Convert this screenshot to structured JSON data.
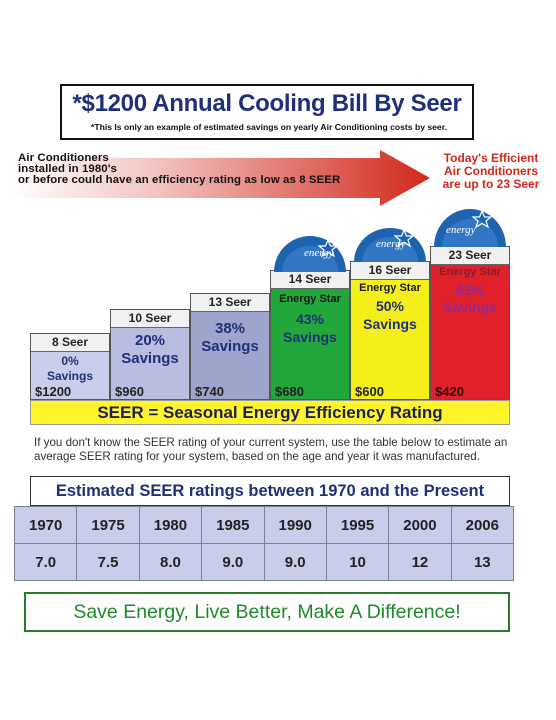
{
  "title": {
    "main": "*$1200 Annual Cooling Bill By Seer",
    "sub": "*This Is only an example of estimated savings on yearly Air Conditioning costs by seer."
  },
  "arrow": {
    "lines": [
      "Air Conditioners",
      "installed in 1980's",
      "or before could have an efficiency rating as low as 8 SEER"
    ]
  },
  "today": {
    "lines": [
      "Today's Efficient",
      "Air Conditioners",
      "are up to 23 Seer"
    ]
  },
  "energy_star_logo_text": "energy",
  "bars": [
    {
      "seer": "8 Seer",
      "star": "",
      "pct": "0%",
      "savings": "Savings",
      "cost": "$1200",
      "color": "#c9cdea",
      "text_color": "#1f2f7a"
    },
    {
      "seer": "10 Seer",
      "star": "",
      "pct": "20%",
      "savings": "Savings",
      "cost": "$960",
      "color": "#b9bde0",
      "text_color": "#1f2f7a"
    },
    {
      "seer": "13 Seer",
      "star": "",
      "pct": "38%",
      "savings": "Savings",
      "cost": "$740",
      "color": "#9ea5cc",
      "text_color": "#1f2f7a"
    },
    {
      "seer": "14 Seer",
      "star": "Energy Star",
      "pct": "43%",
      "savings": "Savings",
      "cost": "$680",
      "color": "#22a83a",
      "text_color": "#1f2f7a"
    },
    {
      "seer": "16 Seer",
      "star": "Energy Star",
      "pct": "50%",
      "savings": "Savings",
      "cost": "$600",
      "color": "#f4ee1a",
      "text_color": "#1f2f7a"
    },
    {
      "seer": "23 Seer",
      "star": "Energy Star",
      "pct": "65%",
      "savings": "Savings",
      "cost": "$420",
      "color": "#e0202a",
      "text_color": "#1f2f7a"
    }
  ],
  "seer_banner": "SEER  =  Seasonal Energy Efficiency Rating",
  "info_text": "If you don't know the SEER rating of your current system, use the table below to estimate an average SEER rating for your system, based on the age and year it was manufactured.",
  "table": {
    "title": "Estimated SEER ratings between 1970 and the Present",
    "years": [
      "1970",
      "1975",
      "1980",
      "1985",
      "1990",
      "1995",
      "2000",
      "2006"
    ],
    "ratings": [
      "7.0",
      "7.5",
      "8.0",
      "9.0",
      "9.0",
      "10",
      "12",
      "13"
    ]
  },
  "footer": "Save Energy, Live Better, Make A Difference!",
  "colors": {
    "title_blue": "#1f2f7a",
    "arrow_red": "#d2281c",
    "banner_yellow": "#fff52a",
    "table_cell": "#c9cdea",
    "footer_green": "#1f8a2a"
  }
}
